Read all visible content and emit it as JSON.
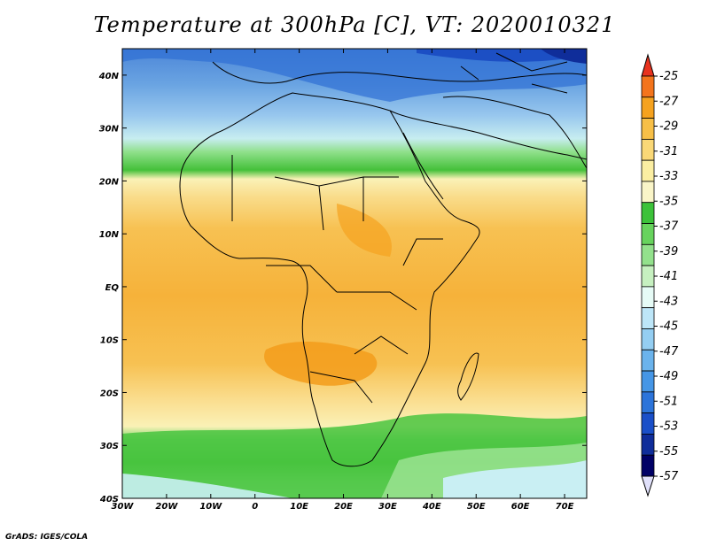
{
  "title": "Temperature at 300hPa [C], VT: 2020010321",
  "credit": "GrADS: IGES/COLA",
  "map": {
    "lat_labels": [
      "40N",
      "30N",
      "20N",
      "10N",
      "EQ",
      "10S",
      "20S",
      "30S",
      "40S"
    ],
    "lon_labels": [
      "30W",
      "20W",
      "10W",
      "0",
      "10E",
      "20E",
      "30E",
      "40E",
      "50E",
      "60E",
      "70E"
    ],
    "lat_range": [
      -40,
      45
    ],
    "lon_range": [
      -30,
      75
    ]
  },
  "colorbar": {
    "levels": [
      "-25",
      "-27",
      "-29",
      "-31",
      "-33",
      "-35",
      "-37",
      "-39",
      "-41",
      "-43",
      "-45",
      "-47",
      "-49",
      "-51",
      "-53",
      "-55",
      "-57"
    ],
    "colors": [
      "#e8321e",
      "#f3741c",
      "#f5a21f",
      "#f7bf47",
      "#fad877",
      "#fbeea2",
      "#faf5c8",
      "#3cc23a",
      "#67d35d",
      "#93e18c",
      "#c6f0c0",
      "#e6fbf6",
      "#bde6f8",
      "#94cef2",
      "#6bb3ec",
      "#4696e6",
      "#2c74da",
      "#1a4fc8",
      "#0f2d9a",
      "#000066",
      "#e0e0fa"
    ]
  }
}
